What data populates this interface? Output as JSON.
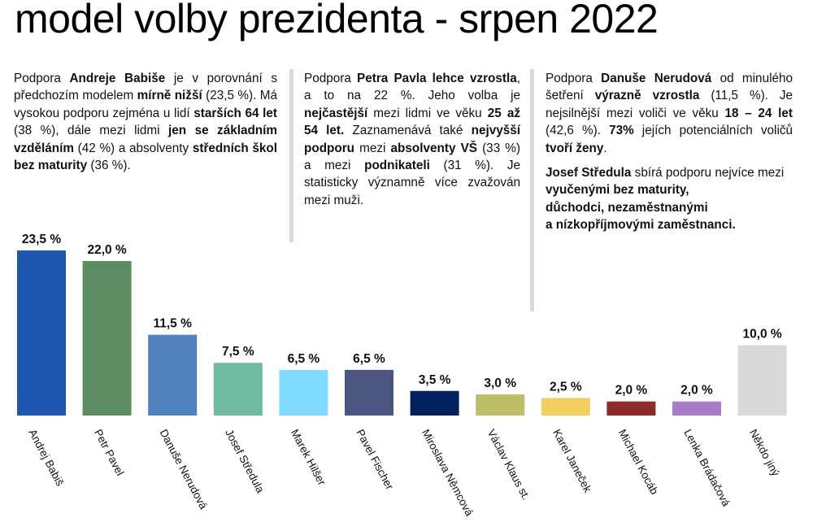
{
  "title": "model volby prezidenta - srpen 2022",
  "text_blocks": [
    {
      "id": "babis",
      "paragraphs": [
        [
          {
            "t": "Podpora ",
            "b": false
          },
          {
            "t": "Andreje Babiše",
            "b": true
          },
          {
            "t": " je v porovnání s předchozím modelem ",
            "b": false
          },
          {
            "t": "mírně nižší",
            "b": true
          },
          {
            "t": " (23,5 %). Má vysokou podporu zejména u lidí ",
            "b": false
          },
          {
            "t": "starších 64 let",
            "b": true
          },
          {
            "t": " (38 %), dále mezi lidmi ",
            "b": false
          },
          {
            "t": "jen se základním vzděláním",
            "b": true
          },
          {
            "t": " (42 %) a absolventy ",
            "b": false
          },
          {
            "t": "středních škol bez maturity",
            "b": true
          },
          {
            "t": " (36 %).",
            "b": false
          }
        ]
      ]
    },
    {
      "id": "pavel",
      "paragraphs": [
        [
          {
            "t": "Podpora ",
            "b": false
          },
          {
            "t": "Petra Pavla lehce vzrostla",
            "b": true
          },
          {
            "t": ", a to na 22 %. Jeho volba je ",
            "b": false
          },
          {
            "t": "nejčastější",
            "b": true
          },
          {
            "t": " mezi lidmi ve věku ",
            "b": false
          },
          {
            "t": "25 až 54 let.",
            "b": true
          },
          {
            "t": " Zaznamenává také ",
            "b": false
          },
          {
            "t": "nejvyšší podporu",
            "b": true
          },
          {
            "t": " mezi ",
            "b": false
          },
          {
            "t": "absolventy VŠ",
            "b": true
          },
          {
            "t": " (33 %) a mezi ",
            "b": false
          },
          {
            "t": "podnikateli",
            "b": true
          },
          {
            "t": " (31 %). Je statisticky významně více zvažován mezi muži.",
            "b": false
          }
        ]
      ]
    },
    {
      "id": "nerudova-stredula",
      "paragraphs": [
        [
          {
            "t": "Podpora ",
            "b": false
          },
          {
            "t": "Danuše Nerudová",
            "b": true
          },
          {
            "t": " od minulého šetření ",
            "b": false
          },
          {
            "t": "výrazně vzrostla",
            "b": true
          },
          {
            "t": " (11,5 %). Je nejsilnější mezi voliči ve věku ",
            "b": false
          },
          {
            "t": "18 – 24 let",
            "b": true
          },
          {
            "t": " (42,6 %). ",
            "b": false
          },
          {
            "t": "73%",
            "b": true
          },
          {
            "t": " jejích potenciálních voličů ",
            "b": false
          },
          {
            "t": "tvoří ženy",
            "b": true
          },
          {
            "t": ".",
            "b": false
          }
        ],
        [
          {
            "t": "Josef Středula",
            "b": true
          },
          {
            "t": " sbírá podporu nejvíce mezi ",
            "b": false
          },
          {
            "t": "vyučenými bez maturity,",
            "b": true
          },
          {
            "t": "\n",
            "b": false
          },
          {
            "t": "důchodci, nezaměstnanými",
            "b": true
          },
          {
            "t": "\n",
            "b": false
          },
          {
            "t": "a nízkopříjmovými zaměstnanci.",
            "b": true
          }
        ]
      ]
    }
  ],
  "chart_data": {
    "type": "bar",
    "title": "",
    "xlabel": "",
    "ylabel": "",
    "ylim": [
      0,
      23.5
    ],
    "grid": false,
    "legend": "none",
    "value_format": "0,0 %",
    "categories": [
      "Andrej Babiš",
      "Petr Pavel",
      "Danuše Nerudová",
      "Josef Středula",
      "Marek Hilšer",
      "Pavel Fischer",
      "Miroslava Němcová",
      "Václav Klaus st.",
      "Karel Janeček",
      "Michael Kocáb",
      "Lenka Brádačová",
      "Někdo jiný"
    ],
    "values": [
      23.5,
      22.0,
      11.5,
      7.5,
      6.5,
      6.5,
      3.5,
      3.0,
      2.5,
      2.0,
      2.0,
      10.0
    ],
    "value_labels": [
      "23,5 %",
      "22,0 %",
      "11,5 %",
      "7,5 %",
      "6,5 %",
      "6,5 %",
      "3,5 %",
      "3,0 %",
      "2,5 %",
      "2,0 %",
      "2,0 %",
      "10,0 %"
    ],
    "colors": [
      "#1f57b0",
      "#5b8c62",
      "#4f81bd",
      "#72bba3",
      "#80dcff",
      "#4c5480",
      "#002060",
      "#bcbe6a",
      "#f2d060",
      "#8e2a2a",
      "#a97cca",
      "#d9d9d9"
    ]
  }
}
